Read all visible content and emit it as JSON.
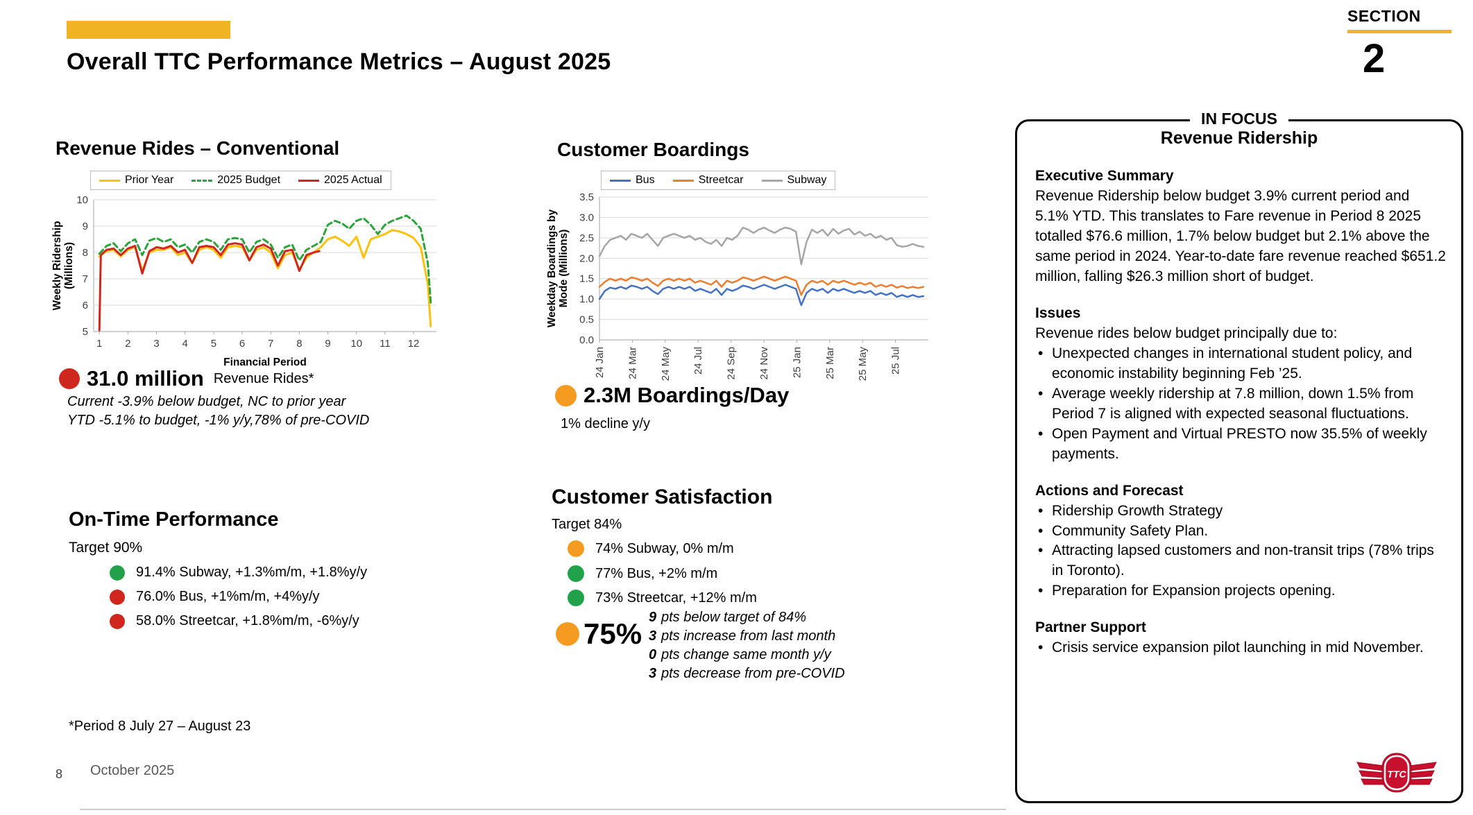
{
  "page": {
    "title": "Overall TTC Performance Metrics – August 2025",
    "section_label": "SECTION",
    "section_number": "2",
    "page_number": "8",
    "footer_date": "October 2025",
    "footnote": "*Period 8 July 27 – August 23"
  },
  "colors": {
    "gold_accent": "#F0B323",
    "status_green": "#22A14B",
    "status_red": "#CF261D",
    "status_orange": "#F59B22"
  },
  "revenue_rides": {
    "kpi_value": "31.0 million",
    "kpi_label": "Revenue Rides*",
    "kpi_dot_color": "#CF261D",
    "note_line1": "Current -3.9% below budget, NC to prior year",
    "note_line2": "YTD -5.1% to budget, -1% y/y,78% of pre-COVID"
  },
  "on_time": {
    "heading": "On-Time Performance",
    "target": "Target 90%",
    "items": [
      {
        "dot_color": "#22A14B",
        "text": "91.4% Subway, +1.3%m/m, +1.8%y/y"
      },
      {
        "dot_color": "#CF261D",
        "text": "76.0% Bus, +1%m/m, +4%y/y"
      },
      {
        "dot_color": "#CF261D",
        "text": "58.0% Streetcar, +1.8%m/m, -6%y/y"
      }
    ]
  },
  "boardings": {
    "kpi_value": "2.3M Boardings/Day",
    "kpi_dot_color": "#F59B22",
    "note": "1% decline y/y"
  },
  "satisfaction": {
    "heading": "Customer Satisfaction",
    "target": "Target 84%",
    "items": [
      {
        "dot_color": "#F59B22",
        "text": "74% Subway, 0% m/m"
      },
      {
        "dot_color": "#22A14B",
        "text": "77% Bus, +2% m/m"
      },
      {
        "dot_color": "#22A14B",
        "text": "73% Streetcar, +12% m/m"
      }
    ],
    "overall_value": "75%",
    "overall_dot_color": "#F59B22",
    "notes": [
      {
        "value": "9",
        "text": "pts below target of 84%"
      },
      {
        "value": "3",
        "text": "pts increase from last month"
      },
      {
        "value": "0",
        "text": "pts change same month y/y"
      },
      {
        "value": "3",
        "text": "pts decrease from pre-COVID"
      }
    ]
  },
  "focus": {
    "tag": "IN FOCUS",
    "title": "Revenue Ridership",
    "exec_heading": "Executive Summary",
    "exec_body": "Revenue Ridership below budget 3.9% current period and 5.1% YTD.  This translates to Fare revenue in Period 8 2025 totalled $76.6 million, 1.7% below budget but 2.1% above the same period in 2024. Year-to-date fare revenue reached $651.2 million, falling $26.3 million short of budget.",
    "issues_heading": "Issues",
    "issues_intro": "Revenue rides below budget principally due to:",
    "issues_bullets": [
      "Unexpected changes in international student policy, and economic instability beginning Feb ’25.",
      "Average weekly ridership at 7.8 million, down 1.5% from Period 7 is aligned with expected seasonal fluctuations.",
      "Open Payment and Virtual PRESTO now 35.5% of weekly payments."
    ],
    "actions_heading": "Actions and Forecast",
    "actions_bullets": [
      "Ridership Growth Strategy",
      "Community Safety Plan.",
      "Attracting lapsed customers and non-transit trips (78% trips in Toronto).",
      "Preparation for Expansion projects opening."
    ],
    "partner_heading": "Partner Support",
    "partner_bullets": [
      "Crisis service expansion pilot launching in mid November."
    ]
  },
  "chart_data": [
    {
      "id": "revenue",
      "type": "line",
      "title": "Revenue Rides – Conventional",
      "xlabel": "Financial Period",
      "ylabel": "Weekly Ridership (Millions)",
      "ylabel_lines": [
        "Weekly Ridership",
        "(Millions)"
      ],
      "xlim": [
        0.8,
        12.8
      ],
      "ylim": [
        5,
        10
      ],
      "xticks": [
        1,
        2,
        3,
        4,
        5,
        6,
        7,
        8,
        9,
        10,
        11,
        12
      ],
      "xtick_labels": [
        "1",
        "2",
        "3",
        "4",
        "5",
        "6",
        "7",
        "8",
        "9",
        "10",
        "11",
        "12"
      ],
      "yticks": [
        5,
        6,
        7,
        8,
        9,
        10
      ],
      "ytick_labels": [
        "5",
        "6",
        "7",
        "8",
        "9",
        "10"
      ],
      "grid": "horizontal",
      "legend_position": "top",
      "series": [
        {
          "name": "Prior Year",
          "color": "#FFC10E",
          "dash": null,
          "points": [
            [
              1,
              7.85
            ],
            [
              1.25,
              8.05
            ],
            [
              1.5,
              8.1
            ],
            [
              1.75,
              7.85
            ],
            [
              2,
              8.1
            ],
            [
              2.25,
              8.2
            ],
            [
              2.5,
              7.3
            ],
            [
              2.75,
              8.0
            ],
            [
              3,
              8.1
            ],
            [
              3.25,
              8.1
            ],
            [
              3.5,
              8.2
            ],
            [
              3.75,
              7.9
            ],
            [
              4,
              8.0
            ],
            [
              4.25,
              7.6
            ],
            [
              4.5,
              8.1
            ],
            [
              4.75,
              8.2
            ],
            [
              5,
              8.1
            ],
            [
              5.25,
              7.8
            ],
            [
              5.5,
              8.2
            ],
            [
              5.75,
              8.25
            ],
            [
              6,
              8.2
            ],
            [
              6.25,
              7.7
            ],
            [
              6.5,
              8.1
            ],
            [
              6.75,
              8.2
            ],
            [
              7,
              8.0
            ],
            [
              7.25,
              7.4
            ],
            [
              7.5,
              7.9
            ],
            [
              7.75,
              8.0
            ],
            [
              8,
              7.35
            ],
            [
              8.25,
              7.8
            ],
            [
              8.5,
              8.0
            ],
            [
              8.75,
              8.2
            ],
            [
              9,
              8.5
            ],
            [
              9.25,
              8.6
            ],
            [
              9.5,
              8.45
            ],
            [
              9.75,
              8.25
            ],
            [
              10,
              8.6
            ],
            [
              10.25,
              7.8
            ],
            [
              10.5,
              8.5
            ],
            [
              10.75,
              8.6
            ],
            [
              11,
              8.7
            ],
            [
              11.25,
              8.85
            ],
            [
              11.5,
              8.8
            ],
            [
              11.75,
              8.7
            ],
            [
              12,
              8.55
            ],
            [
              12.25,
              8.2
            ],
            [
              12.5,
              6.8
            ],
            [
              12.6,
              5.2
            ]
          ]
        },
        {
          "name": "2025 Budget",
          "color": "#2CA43B",
          "dash": "8 5",
          "points": [
            [
              1,
              7.95
            ],
            [
              1.25,
              8.25
            ],
            [
              1.5,
              8.35
            ],
            [
              1.75,
              8.05
            ],
            [
              2,
              8.35
            ],
            [
              2.25,
              8.5
            ],
            [
              2.5,
              7.9
            ],
            [
              2.75,
              8.45
            ],
            [
              3,
              8.55
            ],
            [
              3.25,
              8.4
            ],
            [
              3.5,
              8.5
            ],
            [
              3.75,
              8.2
            ],
            [
              4,
              8.3
            ],
            [
              4.25,
              8.0
            ],
            [
              4.5,
              8.4
            ],
            [
              4.75,
              8.5
            ],
            [
              5,
              8.4
            ],
            [
              5.25,
              8.1
            ],
            [
              5.5,
              8.5
            ],
            [
              5.75,
              8.55
            ],
            [
              6,
              8.5
            ],
            [
              6.25,
              8.0
            ],
            [
              6.5,
              8.4
            ],
            [
              6.75,
              8.5
            ],
            [
              7,
              8.3
            ],
            [
              7.25,
              7.8
            ],
            [
              7.5,
              8.2
            ],
            [
              7.75,
              8.3
            ],
            [
              8,
              7.7
            ],
            [
              8.25,
              8.1
            ],
            [
              8.5,
              8.25
            ],
            [
              8.75,
              8.4
            ],
            [
              9,
              9.05
            ],
            [
              9.25,
              9.2
            ],
            [
              9.5,
              9.1
            ],
            [
              9.75,
              8.9
            ],
            [
              10,
              9.2
            ],
            [
              10.25,
              9.3
            ],
            [
              10.5,
              9.05
            ],
            [
              10.75,
              8.7
            ],
            [
              11,
              9.05
            ],
            [
              11.25,
              9.2
            ],
            [
              11.5,
              9.3
            ],
            [
              11.75,
              9.4
            ],
            [
              12,
              9.2
            ],
            [
              12.25,
              8.9
            ],
            [
              12.5,
              7.6
            ],
            [
              12.6,
              6.1
            ]
          ]
        },
        {
          "name": "2025 Actual",
          "color": "#D0261D",
          "dash": null,
          "points": [
            [
              1,
              5.05
            ],
            [
              1.05,
              7.9
            ],
            [
              1.25,
              8.1
            ],
            [
              1.5,
              8.15
            ],
            [
              1.75,
              7.9
            ],
            [
              2,
              8.15
            ],
            [
              2.25,
              8.25
            ],
            [
              2.5,
              7.2
            ],
            [
              2.75,
              8.05
            ],
            [
              3,
              8.2
            ],
            [
              3.25,
              8.15
            ],
            [
              3.5,
              8.25
            ],
            [
              3.75,
              8.0
            ],
            [
              4,
              8.1
            ],
            [
              4.25,
              7.6
            ],
            [
              4.5,
              8.2
            ],
            [
              4.75,
              8.25
            ],
            [
              5,
              8.2
            ],
            [
              5.25,
              7.9
            ],
            [
              5.5,
              8.3
            ],
            [
              5.75,
              8.35
            ],
            [
              6,
              8.3
            ],
            [
              6.25,
              7.7
            ],
            [
              6.5,
              8.2
            ],
            [
              6.75,
              8.3
            ],
            [
              7,
              8.15
            ],
            [
              7.25,
              7.5
            ],
            [
              7.5,
              8.05
            ],
            [
              7.75,
              8.1
            ],
            [
              8,
              7.3
            ],
            [
              8.25,
              7.9
            ],
            [
              8.5,
              8.0
            ],
            [
              8.7,
              8.05
            ]
          ]
        }
      ]
    },
    {
      "id": "boardings",
      "type": "line",
      "title": "Customer Boardings",
      "xlabel": "",
      "ylabel": "Weekday Boardings by Mode (Millions)",
      "ylabel_lines": [
        "Weekday Boardings by",
        "Mode (Millions)"
      ],
      "xlim": [
        0,
        20
      ],
      "x_data_end": 19.7,
      "ylim": [
        0,
        3.5
      ],
      "xticks": [
        0,
        2,
        4,
        6,
        8,
        10,
        12,
        14,
        16,
        18
      ],
      "xtick_labels": [
        "24 Jan",
        "24 Mar",
        "24 May",
        "24 Jul",
        "24 Sep",
        "24 Nov",
        "25 Jan",
        "25 Mar",
        "25 May",
        "25 Jul"
      ],
      "yticks": [
        0,
        0.5,
        1,
        1.5,
        2,
        2.5,
        3,
        3.5
      ],
      "ytick_labels": [
        "0.0",
        "0.5",
        "1.0",
        "1.5",
        "2.0",
        "2.5",
        "3.0",
        "3.5"
      ],
      "grid": "horizontal",
      "legend_position": "top",
      "series": [
        {
          "name": "Bus",
          "color": "#4472C4",
          "dash": null,
          "values": [
            1.0,
            1.2,
            1.28,
            1.25,
            1.3,
            1.25,
            1.33,
            1.3,
            1.25,
            1.3,
            1.2,
            1.12,
            1.25,
            1.3,
            1.25,
            1.3,
            1.25,
            1.3,
            1.2,
            1.25,
            1.2,
            1.15,
            1.25,
            1.1,
            1.25,
            1.2,
            1.25,
            1.33,
            1.3,
            1.25,
            1.3,
            1.35,
            1.3,
            1.25,
            1.3,
            1.35,
            1.3,
            1.25,
            0.85,
            1.15,
            1.25,
            1.2,
            1.25,
            1.15,
            1.25,
            1.2,
            1.25,
            1.2,
            1.15,
            1.2,
            1.15,
            1.2,
            1.1,
            1.15,
            1.1,
            1.15,
            1.05,
            1.1,
            1.05,
            1.1,
            1.05,
            1.07
          ]
        },
        {
          "name": "Streetcar",
          "color": "#ED7D31",
          "dash": null,
          "values": [
            1.3,
            1.42,
            1.5,
            1.45,
            1.5,
            1.45,
            1.53,
            1.5,
            1.45,
            1.5,
            1.4,
            1.32,
            1.45,
            1.5,
            1.45,
            1.5,
            1.45,
            1.5,
            1.4,
            1.45,
            1.4,
            1.35,
            1.45,
            1.3,
            1.45,
            1.4,
            1.45,
            1.53,
            1.5,
            1.45,
            1.5,
            1.55,
            1.5,
            1.45,
            1.5,
            1.55,
            1.5,
            1.45,
            1.1,
            1.35,
            1.45,
            1.4,
            1.45,
            1.35,
            1.45,
            1.4,
            1.45,
            1.4,
            1.35,
            1.4,
            1.35,
            1.4,
            1.3,
            1.35,
            1.3,
            1.35,
            1.28,
            1.32,
            1.27,
            1.3,
            1.27,
            1.3
          ]
        },
        {
          "name": "Subway",
          "color": "#A6A6A6",
          "dash": null,
          "values": [
            2.05,
            2.3,
            2.45,
            2.5,
            2.55,
            2.45,
            2.6,
            2.55,
            2.5,
            2.6,
            2.45,
            2.3,
            2.5,
            2.55,
            2.6,
            2.55,
            2.5,
            2.55,
            2.45,
            2.5,
            2.4,
            2.35,
            2.45,
            2.3,
            2.5,
            2.45,
            2.55,
            2.75,
            2.7,
            2.62,
            2.7,
            2.75,
            2.68,
            2.62,
            2.7,
            2.75,
            2.72,
            2.65,
            1.85,
            2.4,
            2.7,
            2.62,
            2.7,
            2.55,
            2.72,
            2.6,
            2.68,
            2.72,
            2.58,
            2.65,
            2.55,
            2.6,
            2.5,
            2.55,
            2.45,
            2.5,
            2.32,
            2.28,
            2.3,
            2.35,
            2.3,
            2.28
          ]
        }
      ]
    }
  ]
}
